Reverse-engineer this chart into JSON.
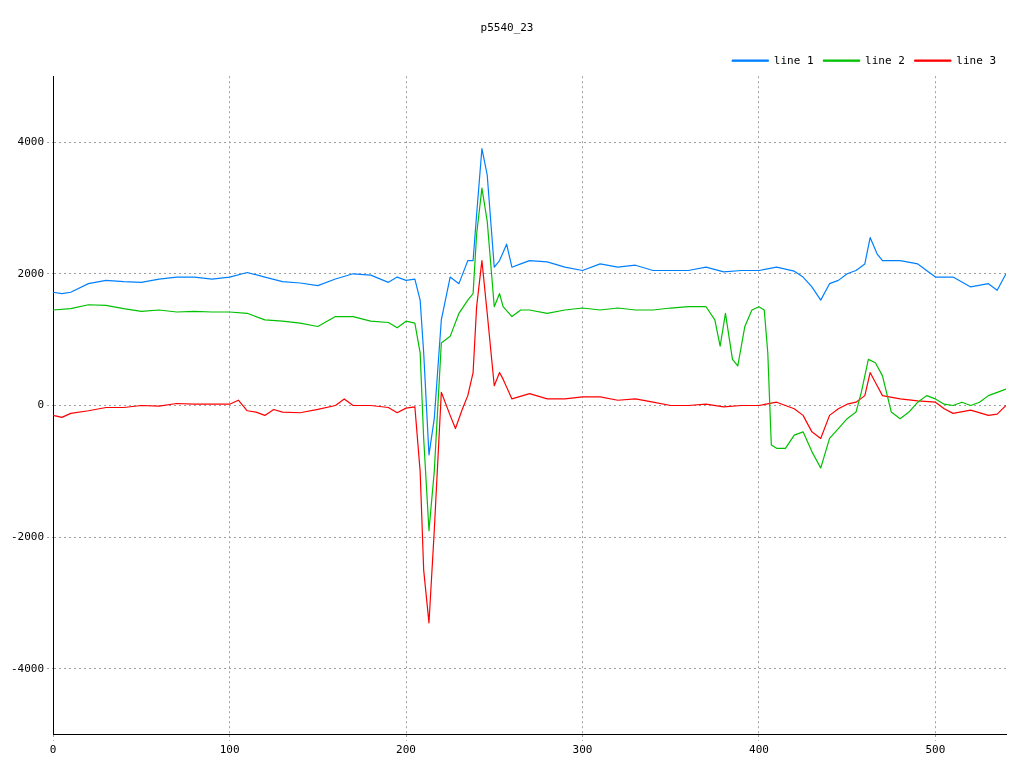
{
  "chart_data": {
    "type": "line",
    "title": "p5540_23",
    "xlim": [
      0,
      540
    ],
    "xticks": [
      0,
      100,
      200,
      300,
      400,
      500
    ],
    "ylim": [
      -5000,
      5000
    ],
    "yticks": [
      -4000,
      -2000,
      0,
      2000,
      4000
    ],
    "grid": true,
    "legend": "top right",
    "marker": "none",
    "line_style": "solid",
    "series": [
      {
        "name": "line 1",
        "color": "#0080ff",
        "x": [
          0,
          5,
          10,
          20,
          30,
          40,
          50,
          60,
          70,
          80,
          90,
          100,
          110,
          120,
          130,
          140,
          150,
          160,
          170,
          180,
          190,
          195,
          200,
          205,
          208,
          210,
          213,
          216,
          220,
          225,
          230,
          235,
          238,
          240,
          243,
          246,
          250,
          253,
          257,
          260,
          265,
          270,
          280,
          290,
          300,
          310,
          320,
          330,
          340,
          350,
          360,
          370,
          380,
          390,
          395,
          400,
          410,
          420,
          425,
          430,
          435,
          440,
          445,
          450,
          455,
          460,
          463,
          467,
          470,
          480,
          490,
          500,
          510,
          520,
          530,
          535,
          540
        ],
        "values": [
          1720,
          1700,
          1720,
          1850,
          1900,
          1880,
          1870,
          1920,
          1950,
          1950,
          1920,
          1950,
          2020,
          1950,
          1880,
          1860,
          1820,
          1920,
          2000,
          1980,
          1870,
          1950,
          1900,
          1920,
          1600,
          800,
          -750,
          -200,
          1300,
          1950,
          1850,
          2200,
          2200,
          2900,
          3900,
          3500,
          2100,
          2200,
          2450,
          2100,
          2150,
          2200,
          2180,
          2100,
          2050,
          2150,
          2100,
          2130,
          2050,
          2050,
          2050,
          2100,
          2030,
          2050,
          2050,
          2050,
          2100,
          2040,
          1950,
          1800,
          1600,
          1850,
          1900,
          2000,
          2050,
          2150,
          2550,
          2300,
          2200,
          2200,
          2150,
          1950,
          1950,
          1800,
          1850,
          1750,
          2000
        ]
      },
      {
        "name": "line 2",
        "color": "#00c000",
        "x": [
          0,
          10,
          20,
          30,
          40,
          50,
          60,
          70,
          80,
          90,
          100,
          110,
          120,
          130,
          140,
          150,
          160,
          170,
          180,
          190,
          195,
          200,
          205,
          208,
          210,
          213,
          216,
          220,
          225,
          230,
          235,
          238,
          240,
          243,
          246,
          250,
          253,
          255,
          260,
          265,
          270,
          280,
          290,
          300,
          310,
          320,
          330,
          340,
          350,
          360,
          370,
          375,
          378,
          381,
          385,
          388,
          392,
          396,
          400,
          403,
          405,
          407,
          410,
          415,
          420,
          425,
          430,
          435,
          440,
          445,
          450,
          455,
          458,
          462,
          466,
          470,
          475,
          480,
          485,
          490,
          495,
          500,
          505,
          510,
          515,
          520,
          525,
          530,
          535,
          540
        ],
        "values": [
          1450,
          1470,
          1530,
          1520,
          1470,
          1430,
          1450,
          1420,
          1430,
          1420,
          1420,
          1400,
          1300,
          1280,
          1250,
          1200,
          1350,
          1350,
          1280,
          1260,
          1180,
          1280,
          1250,
          800,
          -500,
          -1900,
          -1000,
          950,
          1050,
          1400,
          1600,
          1700,
          2600,
          3300,
          2800,
          1500,
          1700,
          1500,
          1350,
          1450,
          1450,
          1400,
          1450,
          1480,
          1450,
          1480,
          1450,
          1450,
          1480,
          1500,
          1500,
          1300,
          900,
          1400,
          700,
          600,
          1200,
          1450,
          1500,
          1450,
          800,
          -600,
          -650,
          -650,
          -450,
          -400,
          -700,
          -950,
          -500,
          -350,
          -200,
          -100,
          200,
          700,
          650,
          450,
          -100,
          -200,
          -100,
          50,
          150,
          100,
          20,
          0,
          50,
          0,
          50,
          150,
          200,
          250
        ]
      },
      {
        "name": "line 3",
        "color": "#ff0000",
        "x": [
          0,
          5,
          10,
          20,
          30,
          40,
          50,
          60,
          70,
          80,
          90,
          100,
          105,
          110,
          115,
          120,
          125,
          130,
          140,
          150,
          160,
          165,
          170,
          180,
          190,
          195,
          200,
          205,
          208,
          210,
          213,
          216,
          220,
          225,
          228,
          232,
          235,
          238,
          240,
          243,
          246,
          250,
          253,
          255,
          260,
          270,
          280,
          290,
          300,
          310,
          320,
          330,
          340,
          350,
          360,
          370,
          380,
          390,
          400,
          410,
          420,
          425,
          430,
          435,
          440,
          445,
          450,
          455,
          460,
          463,
          467,
          470,
          480,
          490,
          500,
          505,
          510,
          520,
          530,
          535,
          540
        ],
        "values": [
          -150,
          -180,
          -120,
          -80,
          -30,
          -30,
          0,
          -10,
          30,
          20,
          20,
          20,
          80,
          -80,
          -100,
          -150,
          -60,
          -100,
          -110,
          -60,
          0,
          100,
          0,
          0,
          -30,
          -110,
          -40,
          -20,
          -1000,
          -2500,
          -3300,
          -1900,
          200,
          -150,
          -350,
          -50,
          150,
          500,
          1500,
          2200,
          1400,
          300,
          500,
          400,
          100,
          180,
          100,
          100,
          130,
          130,
          80,
          100,
          50,
          0,
          0,
          20,
          -20,
          0,
          0,
          50,
          -50,
          -150,
          -400,
          -500,
          -150,
          -50,
          20,
          50,
          150,
          500,
          300,
          150,
          100,
          70,
          50,
          -50,
          -120,
          -70,
          -150,
          -130,
          0
        ]
      }
    ]
  }
}
